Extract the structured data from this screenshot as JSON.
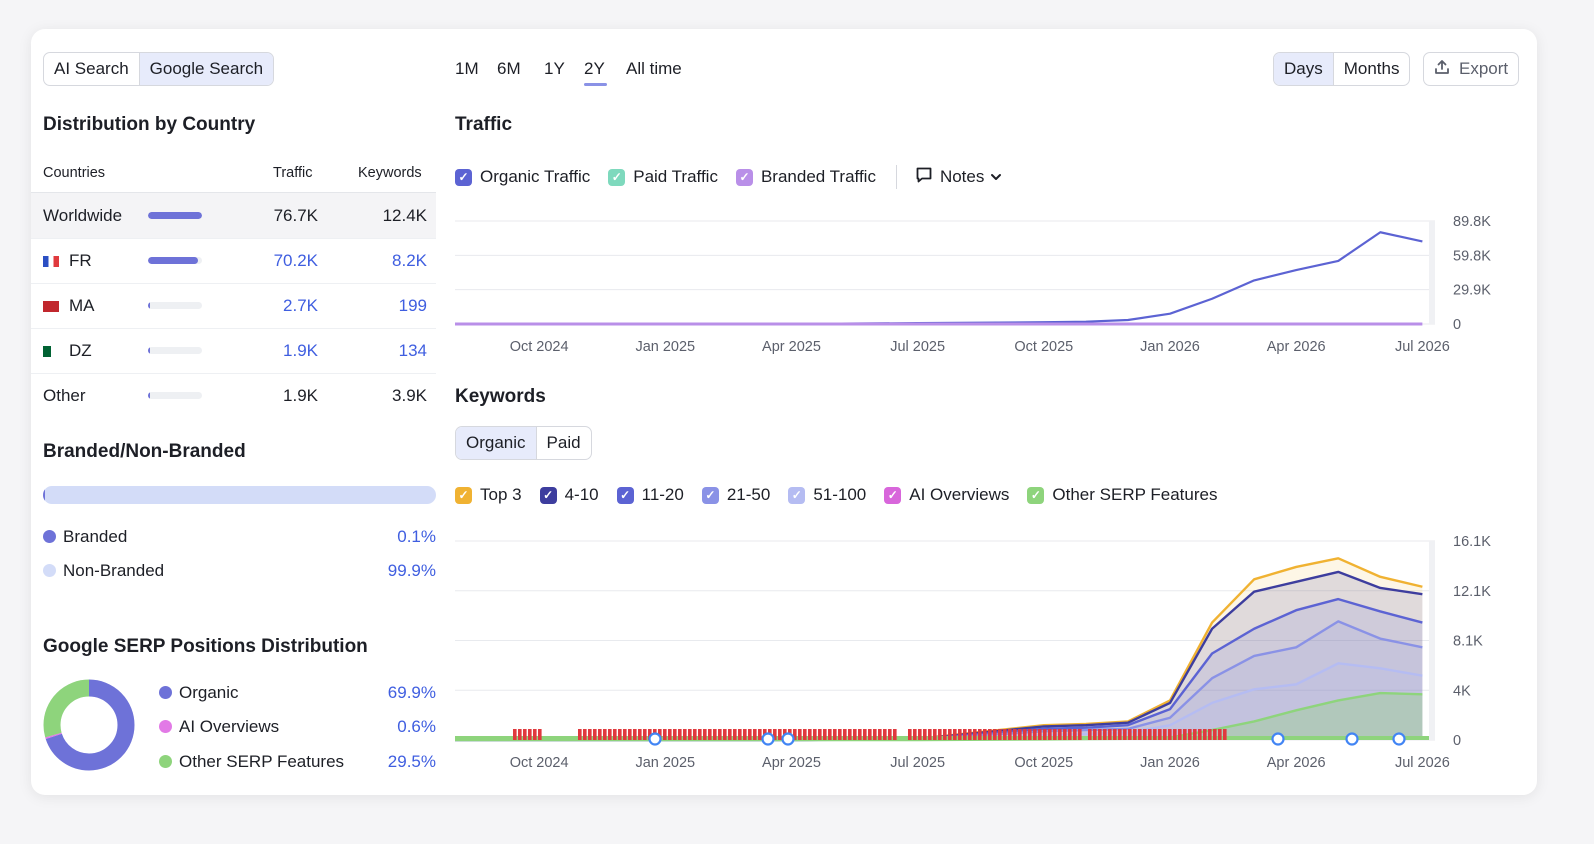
{
  "tabs": {
    "ai_search": "AI Search",
    "google_search": "Google Search"
  },
  "timeframes": [
    "1M",
    "6M",
    "1Y",
    "2Y",
    "All time"
  ],
  "selected_timeframe": "2Y",
  "granularity": {
    "days": "Days",
    "months": "Months"
  },
  "export_label": "Export",
  "country": {
    "title": "Distribution by Country",
    "headers": {
      "countries": "Countries",
      "traffic": "Traffic",
      "keywords": "Keywords"
    },
    "rows": [
      {
        "name": "Worldwide",
        "traffic": "76.7K",
        "keywords": "12.4K",
        "share": 1.0
      },
      {
        "name": "FR",
        "traffic": "70.2K",
        "keywords": "8.2K",
        "share": 0.92
      },
      {
        "name": "MA",
        "traffic": "2.7K",
        "keywords": "199",
        "share": 0.035
      },
      {
        "name": "DZ",
        "traffic": "1.9K",
        "keywords": "134",
        "share": 0.025
      },
      {
        "name": "Other",
        "traffic": "1.9K",
        "keywords": "3.9K",
        "share": 0.025
      }
    ]
  },
  "branded": {
    "title": "Branded/Non-Branded",
    "items": [
      {
        "label": "Branded",
        "value": "0.1%",
        "color": "#6e72d8"
      },
      {
        "label": "Non-Branded",
        "value": "99.9%",
        "color": "#d3dcf8"
      }
    ]
  },
  "serp": {
    "title": "Google SERP Positions Distribution",
    "items": [
      {
        "label": "Organic",
        "value": "69.9%",
        "color": "#6e72d8",
        "pct": 69.9
      },
      {
        "label": "AI Overviews",
        "value": "0.6%",
        "color": "#e27ae6",
        "pct": 0.6
      },
      {
        "label": "Other SERP Features",
        "value": "29.5%",
        "color": "#8ed47c",
        "pct": 29.5
      }
    ]
  },
  "traffic": {
    "title": "Traffic",
    "legend": [
      {
        "label": "Organic Traffic",
        "color": "#5c63d3"
      },
      {
        "label": "Paid Traffic",
        "color": "#7ed9bd"
      },
      {
        "label": "Branded Traffic",
        "color": "#b98fe8"
      }
    ],
    "notes_label": "Notes"
  },
  "keywords": {
    "title": "Keywords",
    "tabs": {
      "organic": "Organic",
      "paid": "Paid"
    },
    "legend": [
      {
        "label": "Top 3",
        "color": "#f0b232"
      },
      {
        "label": "4-10",
        "color": "#3d3d9e"
      },
      {
        "label": "11-20",
        "color": "#5c63d3"
      },
      {
        "label": "21-50",
        "color": "#8a92e6"
      },
      {
        "label": "51-100",
        "color": "#b5bcf2"
      },
      {
        "label": "AI Overviews",
        "color": "#d866db"
      },
      {
        "label": "Other SERP Features",
        "color": "#8ed47c"
      }
    ]
  },
  "chart_data": [
    {
      "type": "line",
      "title": "Traffic",
      "x_ticks": [
        "Oct 2024",
        "Jan 2025",
        "Apr 2025",
        "Jul 2025",
        "Oct 2025",
        "Jan 2026",
        "Apr 2026",
        "Jul 2026"
      ],
      "y_ticks": [
        "89.8K",
        "59.8K",
        "29.9K",
        "0"
      ],
      "ylim": [
        0,
        89800
      ],
      "x": [
        "Aug 2024",
        "Oct 2024",
        "Jan 2025",
        "Apr 2025",
        "Jul 2025",
        "Oct 2025",
        "Nov 2025",
        "Dec 2025",
        "Jan 2026",
        "Feb 2026",
        "Mar 2026",
        "Apr 2026",
        "May 2026",
        "Jun 2026",
        "Jul 2026"
      ],
      "series": [
        {
          "name": "Organic Traffic",
          "values": [
            0,
            0,
            0,
            0,
            800,
            1500,
            2000,
            3500,
            9000,
            22000,
            38000,
            47000,
            55000,
            80000,
            72000
          ]
        },
        {
          "name": "Branded Traffic",
          "values": [
            0,
            0,
            0,
            0,
            0,
            0,
            0,
            0,
            0,
            0,
            0,
            0,
            0,
            0,
            0
          ]
        }
      ]
    },
    {
      "type": "area",
      "title": "Keywords",
      "x_ticks": [
        "Oct 2024",
        "Jan 2025",
        "Apr 2025",
        "Jul 2025",
        "Oct 2025",
        "Jan 2026",
        "Apr 2026",
        "Jul 2026"
      ],
      "y_ticks": [
        "16.1K",
        "12.1K",
        "8.1K",
        "4K",
        "0"
      ],
      "ylim": [
        0,
        16100
      ],
      "x": [
        "Aug 2024",
        "Oct 2024",
        "Jan 2025",
        "Apr 2025",
        "Jul 2025",
        "Oct 2025",
        "Nov 2025",
        "Dec 2025",
        "Jan 2026",
        "Feb 2026",
        "Mar 2026",
        "Apr 2026",
        "May 2026",
        "Jun 2026",
        "Jul 2026"
      ],
      "series": [
        {
          "name": "Top 3",
          "values": [
            0,
            0,
            0,
            0,
            100,
            1200,
            1300,
            1500,
            3200,
            9500,
            13000,
            14000,
            14700,
            13200,
            12400
          ]
        },
        {
          "name": "4-10",
          "values": [
            0,
            0,
            0,
            0,
            90,
            1100,
            1200,
            1400,
            3000,
            9000,
            12000,
            12800,
            13600,
            12300,
            11800
          ]
        },
        {
          "name": "11-20",
          "values": [
            0,
            0,
            0,
            0,
            80,
            900,
            1000,
            1200,
            2500,
            7000,
            9000,
            10500,
            11400,
            10400,
            9500
          ]
        },
        {
          "name": "21-50",
          "values": [
            0,
            0,
            0,
            0,
            60,
            700,
            800,
            900,
            1800,
            5000,
            6800,
            7500,
            9600,
            8200,
            7500
          ]
        },
        {
          "name": "51-100",
          "values": [
            0,
            0,
            0,
            0,
            40,
            400,
            500,
            600,
            1200,
            3000,
            4100,
            4500,
            6200,
            5800,
            5200
          ]
        },
        {
          "name": "Other SERP Features",
          "values": [
            0,
            0,
            0,
            0,
            0,
            50,
            80,
            100,
            200,
            800,
            1500,
            2400,
            3200,
            3800,
            3700
          ]
        }
      ]
    }
  ]
}
